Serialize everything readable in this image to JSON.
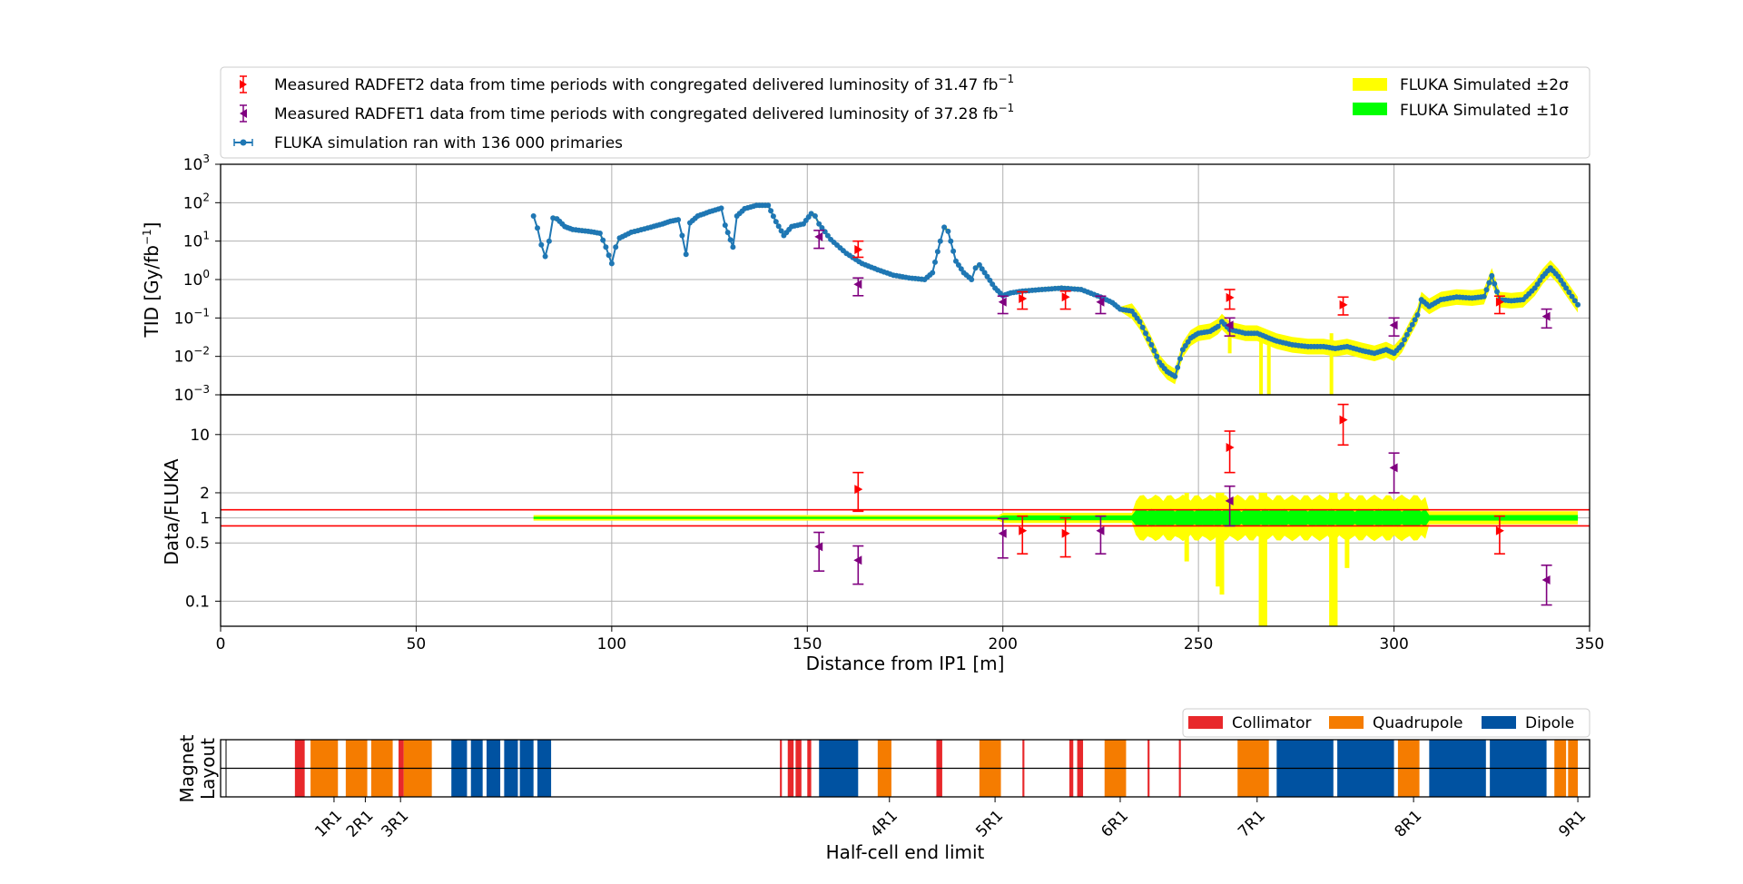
{
  "colors": {
    "measured2": "#ff0000",
    "measured1": "#800080",
    "fluka": "#1f77b4",
    "sigma2": "#ffff00",
    "sigma1": "#00ff00",
    "ratio_lines": "#ff0000",
    "collimator": "#e8282b",
    "quadrupole": "#f57c00",
    "dipole": "#0052a1",
    "grid": "#b0b0b0"
  },
  "legend_top": {
    "radfet2_text": "Measured RADFET2 data from time periods with congregated delivered luminosity of 31.47 fb",
    "radfet1_text": "Measured RADFET1 data from time periods with congregated delivered luminosity of 37.28 fb",
    "superscript": "−1",
    "fluka_text": "FLUKA simulation ran with 136 000 primaries",
    "sigma2_text": "FLUKA Simulated ±2σ",
    "sigma1_text": "FLUKA Simulated ±1σ"
  },
  "legend_bottom": {
    "collimator": "Collimator",
    "quadrupole": "Quadrupole",
    "dipole": "Dipole"
  },
  "chart_data": [
    {
      "type": "scatter",
      "panel": "top",
      "ylabel_main": "TID [Gy/fb",
      "ylabel_sup": "−1",
      "ylabel_end": "]",
      "yscale": "log",
      "ylim": [
        0.001,
        1000
      ],
      "xlim": [
        0,
        350
      ],
      "grid": true,
      "yticks": [
        {
          "exp": "3",
          "v": 1000
        },
        {
          "exp": "2",
          "v": 100
        },
        {
          "exp": "1",
          "v": 10
        },
        {
          "exp": "0",
          "v": 1
        },
        {
          "exp": "−1",
          "v": 0.1
        },
        {
          "exp": "−2",
          "v": 0.01
        },
        {
          "exp": "−3",
          "v": 0.001
        }
      ],
      "ytick_base": "10",
      "fluka_curve": [
        [
          80,
          45
        ],
        [
          81,
          22
        ],
        [
          82,
          8
        ],
        [
          83,
          4
        ],
        [
          84,
          10
        ],
        [
          85,
          40
        ],
        [
          86,
          38
        ],
        [
          88,
          24
        ],
        [
          90,
          20
        ],
        [
          94,
          18
        ],
        [
          97,
          16
        ],
        [
          98.5,
          7
        ],
        [
          100,
          2.6
        ],
        [
          101,
          7
        ],
        [
          102,
          12
        ],
        [
          105,
          17
        ],
        [
          110,
          23
        ],
        [
          113,
          28
        ],
        [
          115,
          33
        ],
        [
          117,
          36
        ],
        [
          118,
          14
        ],
        [
          119,
          4.5
        ],
        [
          120,
          30
        ],
        [
          122,
          45
        ],
        [
          125,
          58
        ],
        [
          128,
          72
        ],
        [
          129,
          26
        ],
        [
          131,
          7
        ],
        [
          132,
          45
        ],
        [
          134,
          70
        ],
        [
          137,
          85
        ],
        [
          140,
          85
        ],
        [
          142,
          32
        ],
        [
          144,
          14
        ],
        [
          146,
          24
        ],
        [
          149,
          28
        ],
        [
          151,
          52
        ],
        [
          152,
          45
        ],
        [
          153,
          28
        ],
        [
          156,
          11
        ],
        [
          160,
          4.8
        ],
        [
          164,
          2.6
        ],
        [
          168,
          1.8
        ],
        [
          172,
          1.3
        ],
        [
          176,
          1.1
        ],
        [
          180,
          1.0
        ],
        [
          182,
          1.5
        ],
        [
          184,
          10
        ],
        [
          185,
          23
        ],
        [
          186,
          18
        ],
        [
          188,
          3
        ],
        [
          190,
          1.5
        ],
        [
          192,
          1.0
        ],
        [
          193,
          2.0
        ],
        [
          194,
          2.4
        ],
        [
          196,
          1.2
        ],
        [
          198,
          0.6
        ],
        [
          200,
          0.38
        ],
        [
          202,
          0.45
        ],
        [
          205,
          0.5
        ],
        [
          210,
          0.55
        ],
        [
          215,
          0.6
        ],
        [
          220,
          0.55
        ],
        [
          225,
          0.35
        ],
        [
          228,
          0.25
        ],
        [
          230,
          0.17
        ],
        [
          233,
          0.15
        ],
        [
          235,
          0.08
        ],
        [
          238,
          0.02
        ],
        [
          240,
          0.007
        ],
        [
          242,
          0.004
        ],
        [
          244,
          0.003
        ],
        [
          246,
          0.015
        ],
        [
          248,
          0.03
        ],
        [
          250,
          0.04
        ],
        [
          253,
          0.045
        ],
        [
          255,
          0.06
        ],
        [
          256,
          0.08
        ],
        [
          258,
          0.05
        ],
        [
          262,
          0.04
        ],
        [
          265,
          0.04
        ],
        [
          268,
          0.03
        ],
        [
          270,
          0.025
        ],
        [
          274,
          0.02
        ],
        [
          278,
          0.018
        ],
        [
          282,
          0.018
        ],
        [
          285,
          0.016
        ],
        [
          288,
          0.018
        ],
        [
          292,
          0.014
        ],
        [
          295,
          0.012
        ],
        [
          298,
          0.015
        ],
        [
          300,
          0.012
        ],
        [
          302,
          0.02
        ],
        [
          304,
          0.05
        ],
        [
          306,
          0.12
        ],
        [
          307,
          0.3
        ],
        [
          309,
          0.2
        ],
        [
          312,
          0.3
        ],
        [
          316,
          0.35
        ],
        [
          320,
          0.33
        ],
        [
          323,
          0.36
        ],
        [
          325,
          1.25
        ],
        [
          327,
          0.3
        ],
        [
          330,
          0.28
        ],
        [
          333,
          0.3
        ],
        [
          336,
          0.6
        ],
        [
          338,
          1.2
        ],
        [
          340,
          2.0
        ],
        [
          342,
          1.2
        ],
        [
          344,
          0.6
        ],
        [
          347,
          0.22
        ]
      ],
      "radfet2": [
        {
          "x": 163,
          "y": 6.0,
          "lo": 3.8,
          "hi": 10
        },
        {
          "x": 205,
          "y": 0.32,
          "lo": 0.17,
          "hi": 0.48
        },
        {
          "x": 216,
          "y": 0.35,
          "lo": 0.17,
          "hi": 0.5
        },
        {
          "x": 258,
          "y": 0.34,
          "lo": 0.17,
          "hi": 0.55
        },
        {
          "x": 287,
          "y": 0.22,
          "lo": 0.12,
          "hi": 0.35
        },
        {
          "x": 327,
          "y": 0.26,
          "lo": 0.13,
          "hi": 0.37
        }
      ],
      "radfet1": [
        {
          "x": 153,
          "y": 13,
          "lo": 6.5,
          "hi": 19
        },
        {
          "x": 163,
          "y": 0.75,
          "lo": 0.38,
          "hi": 1.1
        },
        {
          "x": 200,
          "y": 0.26,
          "lo": 0.13,
          "hi": 0.37
        },
        {
          "x": 225,
          "y": 0.26,
          "lo": 0.13,
          "hi": 0.37
        },
        {
          "x": 258,
          "y": 0.065,
          "lo": 0.034,
          "hi": 0.1
        },
        {
          "x": 300,
          "y": 0.065,
          "lo": 0.034,
          "hi": 0.1
        },
        {
          "x": 339,
          "y": 0.11,
          "lo": 0.055,
          "hi": 0.17
        }
      ]
    },
    {
      "type": "scatter",
      "panel": "ratio",
      "ylabel": "Data/FLUKA",
      "xlabel": "Distance from IP1 [m]",
      "yscale": "log",
      "ylim": [
        0.05,
        30
      ],
      "xlim": [
        0,
        350
      ],
      "grid": true,
      "yticks": [
        "0.1",
        "0.5",
        "1",
        "2",
        "10"
      ],
      "xticks": [
        "0",
        "50",
        "100",
        "150",
        "200",
        "250",
        "300",
        "350"
      ],
      "ratio_lines": [
        0.8,
        1.25
      ],
      "radfet2": [
        {
          "x": 163,
          "y": 2.2,
          "lo": 1.2,
          "hi": 3.5
        },
        {
          "x": 205,
          "y": 0.7,
          "lo": 0.37,
          "hi": 1.05
        },
        {
          "x": 216,
          "y": 0.65,
          "lo": 0.34,
          "hi": 1.0
        },
        {
          "x": 258,
          "y": 7.0,
          "lo": 3.5,
          "hi": 11
        },
        {
          "x": 287,
          "y": 15,
          "lo": 7.5,
          "hi": 23
        },
        {
          "x": 327,
          "y": 0.7,
          "lo": 0.37,
          "hi": 1.05
        }
      ],
      "radfet1": [
        {
          "x": 153,
          "y": 0.45,
          "lo": 0.23,
          "hi": 0.67
        },
        {
          "x": 163,
          "y": 0.31,
          "lo": 0.16,
          "hi": 0.46
        },
        {
          "x": 200,
          "y": 0.65,
          "lo": 0.33,
          "hi": 0.98
        },
        {
          "x": 225,
          "y": 0.7,
          "lo": 0.37,
          "hi": 1.05
        },
        {
          "x": 258,
          "y": 1.6,
          "lo": 0.8,
          "hi": 2.4
        },
        {
          "x": 300,
          "y": 4.0,
          "lo": 2.0,
          "hi": 6.0
        },
        {
          "x": 339,
          "y": 0.18,
          "lo": 0.09,
          "hi": 0.27
        }
      ]
    },
    {
      "type": "bar",
      "panel": "magnet-layout",
      "ylabel_line1": "Magnet",
      "ylabel_line2": "Layout",
      "xlabel": "Half-cell end limit",
      "xlim": [
        0,
        350
      ],
      "half_cell_labels": [
        {
          "label": "1R1",
          "x": 29
        },
        {
          "label": "2R1",
          "x": 37
        },
        {
          "label": "3R1",
          "x": 46
        },
        {
          "label": "4R1",
          "x": 171
        },
        {
          "label": "5R1",
          "x": 198
        },
        {
          "label": "6R1",
          "x": 230
        },
        {
          "label": "7R1",
          "x": 265
        },
        {
          "label": "8R1",
          "x": 305
        },
        {
          "label": "9R1",
          "x": 347
        }
      ],
      "collimators": [
        [
          19,
          21.5
        ],
        [
          45.5,
          46.8
        ],
        [
          143,
          143.5
        ],
        [
          145,
          146.5
        ],
        [
          147,
          148.5
        ],
        [
          150,
          151
        ],
        [
          183,
          184.5
        ],
        [
          205,
          205.5
        ],
        [
          217,
          218
        ],
        [
          219,
          220.5
        ],
        [
          237,
          237.5
        ],
        [
          245,
          245.5
        ]
      ],
      "quadrupoles": [
        [
          23,
          30
        ],
        [
          32,
          37.5
        ],
        [
          38.5,
          44
        ],
        [
          46.8,
          54
        ],
        [
          168,
          171.5
        ],
        [
          194,
          199.5
        ],
        [
          226,
          231.5
        ],
        [
          260,
          268
        ],
        [
          301,
          306.5
        ],
        [
          341,
          344
        ],
        [
          344.5,
          347
        ]
      ],
      "dipoles": [
        [
          59,
          63
        ],
        [
          64,
          67
        ],
        [
          68,
          71.5
        ],
        [
          72.5,
          76
        ],
        [
          76.5,
          80
        ],
        [
          81,
          84.5
        ],
        [
          153,
          163
        ],
        [
          270,
          284.5
        ],
        [
          285.5,
          300
        ],
        [
          309,
          323.5
        ],
        [
          324.5,
          339
        ]
      ]
    }
  ]
}
